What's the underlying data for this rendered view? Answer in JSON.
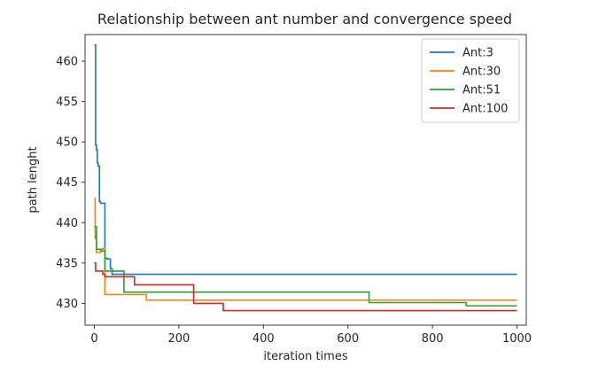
{
  "chart_data": {
    "type": "line",
    "title": "Relationship between ant number and convergence speed",
    "xlabel": "iteration times",
    "ylabel": "path lenght",
    "xlim": [
      -22,
      1022
    ],
    "ylim": [
      427.3,
      463.3
    ],
    "xticks": [
      0,
      200,
      400,
      600,
      800,
      1000
    ],
    "yticks": [
      430,
      435,
      440,
      445,
      450,
      455,
      460
    ],
    "grid": false,
    "legend_position": "top-right",
    "series": [
      {
        "name": "Ant:3",
        "color": "#1f77b4",
        "x": [
          0,
          3,
          5,
          7,
          9,
          12,
          15,
          25,
          30,
          38,
          42,
          1000
        ],
        "y": [
          462,
          449.6,
          449,
          447.4,
          447,
          442.6,
          442.4,
          435.6,
          435.5,
          434.3,
          433.6,
          433.6
        ]
      },
      {
        "name": "Ant:30",
        "color": "#ff7f0e",
        "x": [
          0,
          2,
          5,
          10,
          15,
          20,
          25,
          123,
          1000
        ],
        "y": [
          443,
          438,
          436.3,
          436.3,
          436.7,
          436.8,
          431.1,
          430.4,
          430.4
        ]
      },
      {
        "name": "Ant:51",
        "color": "#2ca02c",
        "x": [
          0,
          5,
          10,
          15,
          20,
          25,
          30,
          70,
          650,
          880,
          1000
        ],
        "y": [
          439.5,
          436.7,
          436.7,
          436.5,
          436.5,
          434,
          434,
          431.4,
          430.1,
          429.7,
          429.7
        ]
      },
      {
        "name": "Ant:100",
        "color": "#d62728",
        "x": [
          0,
          3,
          5,
          20,
          25,
          95,
          235,
          305,
          1000
        ],
        "y": [
          435,
          434,
          434,
          433.6,
          433.3,
          432.3,
          430,
          429.1,
          429.1
        ]
      }
    ]
  }
}
